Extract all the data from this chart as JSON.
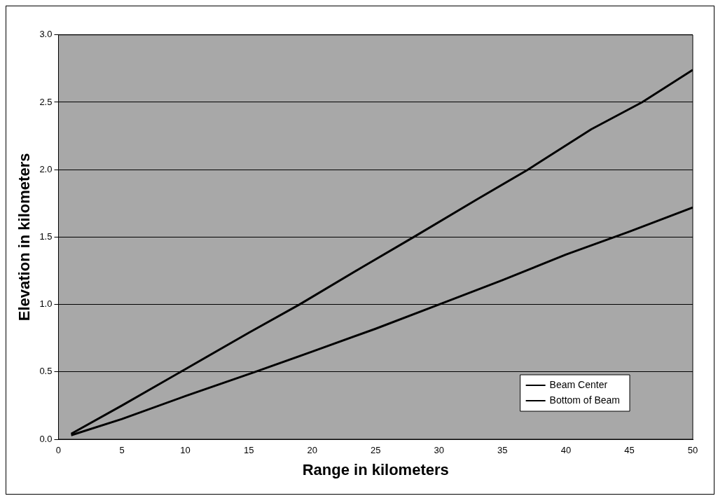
{
  "chart_data": {
    "type": "line",
    "xlabel": "Range in kilometers",
    "ylabel": "Elevation in kilometers",
    "series": [
      {
        "name": "Beam Center",
        "color": "#000000",
        "x": [
          1,
          5,
          10,
          15,
          19,
          24,
          28,
          33,
          37,
          42,
          46,
          50
        ],
        "values": [
          0.04,
          0.25,
          0.52,
          0.79,
          1.0,
          1.28,
          1.5,
          1.78,
          2.0,
          2.3,
          2.5,
          2.74
        ]
      },
      {
        "name": "Bottom of Beam",
        "color": "#000000",
        "x": [
          1,
          5,
          10,
          15.5,
          20,
          25,
          30,
          35,
          40,
          45,
          50
        ],
        "values": [
          0.03,
          0.15,
          0.32,
          0.5,
          0.65,
          0.82,
          1.0,
          1.18,
          1.37,
          1.54,
          1.72
        ]
      }
    ],
    "xlim": [
      0,
      50
    ],
    "xticks": [
      0,
      5,
      10,
      15,
      20,
      25,
      30,
      35,
      40,
      45,
      50
    ],
    "ylim": [
      0,
      3
    ],
    "yticks": [
      {
        "value": 0,
        "label": "0.0"
      },
      {
        "value": 0.5,
        "label": "0.5"
      },
      {
        "value": 1,
        "label": "1.0"
      },
      {
        "value": 1.5,
        "label": "1.5"
      },
      {
        "value": 2,
        "label": "2.0"
      },
      {
        "value": 2.5,
        "label": "2.5"
      },
      {
        "value": 3,
        "label": "3.0"
      }
    ],
    "grid": "y",
    "legend": "bottom right",
    "marker": "none",
    "line_style": "solid"
  }
}
